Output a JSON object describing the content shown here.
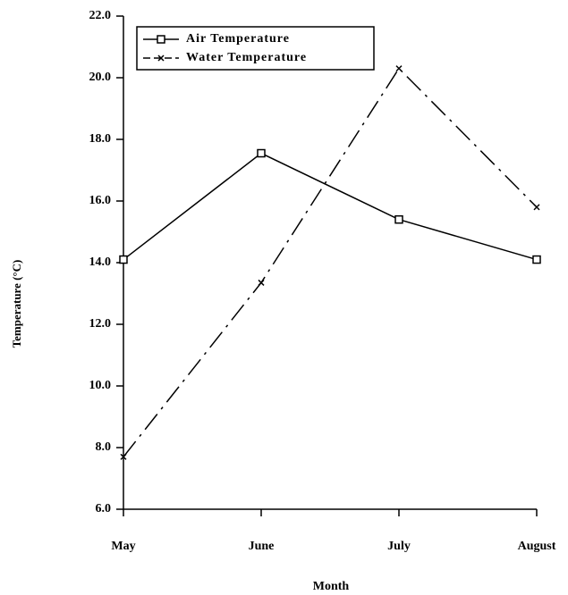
{
  "chart_data": {
    "type": "line",
    "xlabel": "Month",
    "ylabel": "Temperature (°C)",
    "categories": [
      "May",
      "June",
      "July",
      "August"
    ],
    "series": [
      {
        "name": "Air Temperature",
        "color": "#000000",
        "values": [
          14.1,
          17.55,
          15.4,
          14.1
        ]
      },
      {
        "name": "Water Temperature",
        "color": "#000000",
        "values": [
          7.7,
          13.35,
          20.3,
          15.8
        ]
      }
    ],
    "ylim": [
      6,
      22
    ],
    "yticks": [
      {
        "value": 6,
        "label": "6.0"
      },
      {
        "value": 8,
        "label": "8.0"
      },
      {
        "value": 10,
        "label": "10.0"
      },
      {
        "value": 12,
        "label": "12.0"
      },
      {
        "value": 14,
        "label": "14.0"
      },
      {
        "value": 16,
        "label": "16.0"
      },
      {
        "value": 18,
        "label": "18.0"
      },
      {
        "value": 20,
        "label": "20.0"
      },
      {
        "value": 22,
        "label": "22.0"
      }
    ],
    "legend": "upper left",
    "grid": false
  }
}
